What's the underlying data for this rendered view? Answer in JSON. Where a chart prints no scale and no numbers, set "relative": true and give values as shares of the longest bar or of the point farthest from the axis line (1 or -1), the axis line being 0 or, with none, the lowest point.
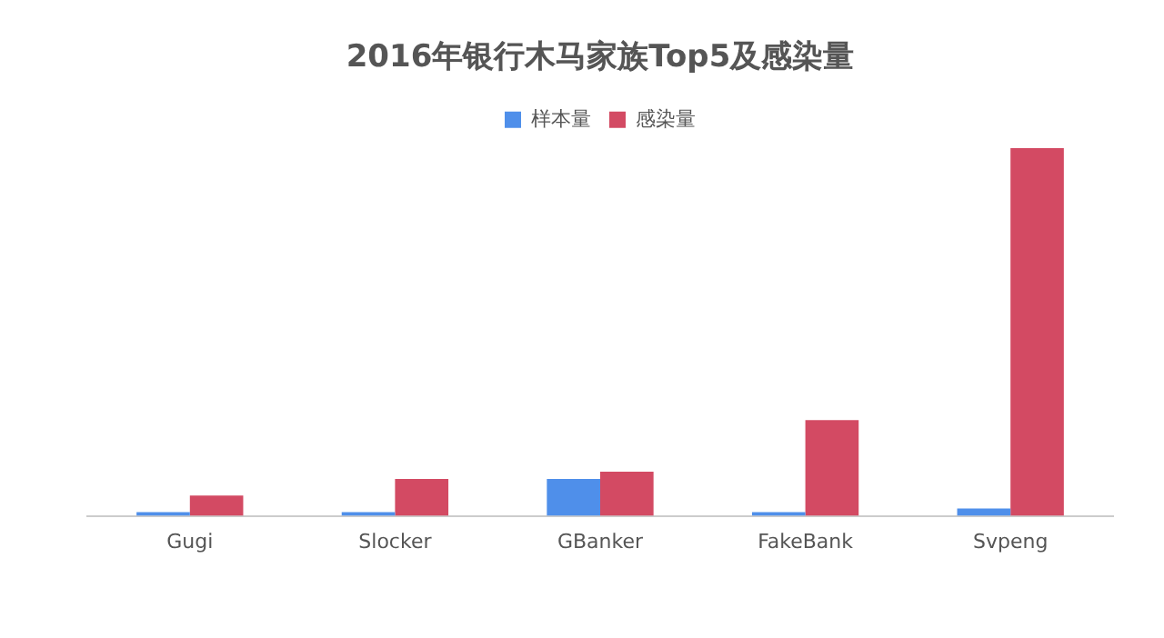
{
  "chart_data": {
    "type": "bar",
    "title": "2016年银行木马家族Top5及感染量",
    "relative": true,
    "legend": "top",
    "categories": [
      "Gugi",
      "Slocker",
      "GBanker",
      "FakeBank",
      "Svpeng"
    ],
    "series": [
      {
        "name": "样本量",
        "color": "#4f8fea",
        "values": [
          0.01,
          0.01,
          0.1,
          0.01,
          0.02
        ]
      },
      {
        "name": "感染量",
        "color": "#d34a63",
        "values": [
          0.055,
          0.1,
          0.12,
          0.26,
          1
        ]
      }
    ]
  }
}
